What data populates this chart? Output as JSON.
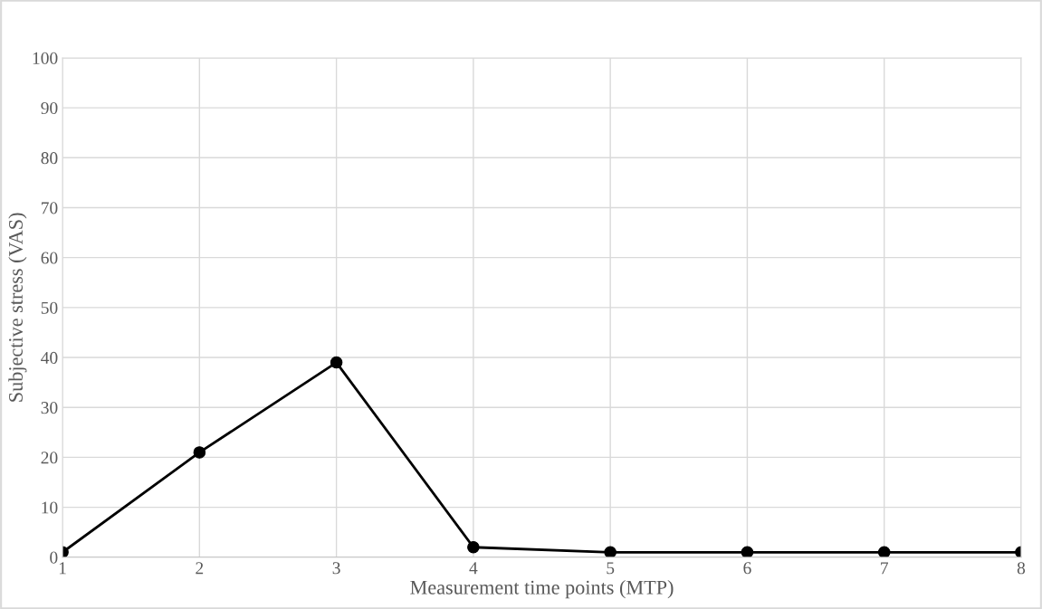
{
  "chart_data": {
    "type": "line",
    "xlabel": "Measurement time points (MTP)",
    "ylabel": "Subjective stress (VAS)",
    "x": [
      1,
      2,
      3,
      4,
      5,
      6,
      7,
      8
    ],
    "series": [
      {
        "color": "#000000",
        "values": [
          1,
          21,
          39,
          2,
          1,
          1,
          1,
          1
        ]
      }
    ],
    "xlim": [
      1,
      8
    ],
    "xticks": [
      1,
      2,
      3,
      4,
      5,
      6,
      7,
      8
    ],
    "ylim": [
      0,
      100
    ],
    "yticks": [
      0,
      10,
      20,
      30,
      40,
      50,
      60,
      70,
      80,
      90,
      100
    ],
    "grid": true,
    "marker": "circle",
    "line_style": "solid"
  }
}
